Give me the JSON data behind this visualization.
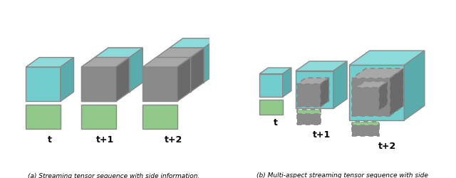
{
  "teal_face": "#72CECE",
  "teal_top": "#8DDADA",
  "teal_side": "#5AACAC",
  "gray_face": "#8A8A8A",
  "gray_top": "#A8A8A8",
  "gray_side": "#6A6A6A",
  "green_face": "#90C98A",
  "green_border": "#7AB574",
  "edge_color": "#888888",
  "dashed_edge": "#BBBBBB",
  "white_dash": "#FFFFFF",
  "caption_a": "(a) Streaming tensor sequence with side information.",
  "caption_b": "(b) Multi-aspect streaming tensor sequence with side\ninformation.",
  "label_t": "t",
  "label_t1": "t+1",
  "label_t2": "t+2"
}
